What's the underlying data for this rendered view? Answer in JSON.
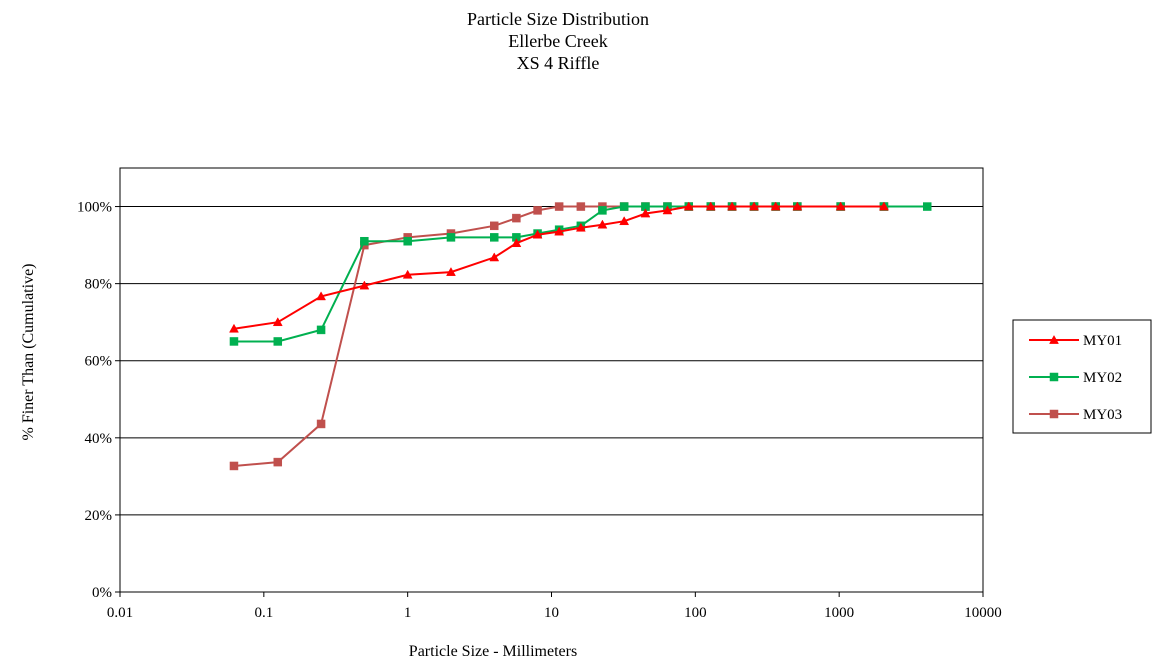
{
  "chart_data": {
    "type": "line",
    "title": [
      "Particle Size Distribution",
      "Ellerbe Creek",
      "XS 4 Riffle"
    ],
    "xlabel": "Particle Size - Millimeters",
    "ylabel": "% Finer Than (Cumulative)",
    "x_scale": "log",
    "xlim": [
      0.01,
      10000
    ],
    "ylim": [
      0,
      1.1
    ],
    "x_ticks": [
      {
        "value": 0.01,
        "label": "0.01"
      },
      {
        "value": 0.1,
        "label": "0.1"
      },
      {
        "value": 1,
        "label": "1"
      },
      {
        "value": 10,
        "label": "10"
      },
      {
        "value": 100,
        "label": "100"
      },
      {
        "value": 1000,
        "label": "1000"
      },
      {
        "value": 10000,
        "label": "10000"
      }
    ],
    "y_ticks": [
      {
        "value": 0,
        "label": "0%"
      },
      {
        "value": 0.2,
        "label": "20%"
      },
      {
        "value": 0.4,
        "label": "40%"
      },
      {
        "value": 0.6,
        "label": "60%"
      },
      {
        "value": 0.8,
        "label": "80%"
      },
      {
        "value": 1.0,
        "label": "100%"
      }
    ],
    "grid": "horizontal",
    "legend_position": "right",
    "series": [
      {
        "name": "MY01",
        "color": "#ff0000",
        "marker": "triangle",
        "points": [
          [
            0.062,
            0.683
          ],
          [
            0.125,
            0.7
          ],
          [
            0.25,
            0.767
          ],
          [
            0.5,
            0.795
          ],
          [
            1,
            0.823
          ],
          [
            2,
            0.83
          ],
          [
            4,
            0.868
          ],
          [
            5.7,
            0.905
          ],
          [
            8,
            0.927
          ],
          [
            11.3,
            0.935
          ],
          [
            16,
            0.945
          ],
          [
            22.6,
            0.953
          ],
          [
            32,
            0.962
          ],
          [
            45,
            0.982
          ],
          [
            64,
            0.99
          ],
          [
            90,
            1.0
          ],
          [
            128,
            1.0
          ],
          [
            180,
            1.0
          ],
          [
            256,
            1.0
          ],
          [
            362,
            1.0
          ],
          [
            512,
            1.0
          ],
          [
            1024,
            1.0
          ],
          [
            2048,
            1.0
          ]
        ]
      },
      {
        "name": "MY02",
        "color": "#00b050",
        "marker": "square",
        "points": [
          [
            0.062,
            0.65
          ],
          [
            0.125,
            0.65
          ],
          [
            0.25,
            0.68
          ],
          [
            0.5,
            0.91
          ],
          [
            1,
            0.91
          ],
          [
            2,
            0.92
          ],
          [
            4,
            0.92
          ],
          [
            5.7,
            0.92
          ],
          [
            8,
            0.93
          ],
          [
            11.3,
            0.94
          ],
          [
            16,
            0.95
          ],
          [
            22.6,
            0.99
          ],
          [
            32,
            1.0
          ],
          [
            45,
            1.0
          ],
          [
            64,
            1.0
          ],
          [
            90,
            1.0
          ],
          [
            128,
            1.0
          ],
          [
            180,
            1.0
          ],
          [
            256,
            1.0
          ],
          [
            362,
            1.0
          ],
          [
            512,
            1.0
          ],
          [
            1024,
            1.0
          ],
          [
            2048,
            1.0
          ],
          [
            4096,
            1.0
          ]
        ]
      },
      {
        "name": "MY03",
        "color": "#c0504d",
        "marker": "square",
        "points": [
          [
            0.062,
            0.327
          ],
          [
            0.125,
            0.337
          ],
          [
            0.25,
            0.436
          ],
          [
            0.5,
            0.9
          ],
          [
            1,
            0.92
          ],
          [
            2,
            0.93
          ],
          [
            4,
            0.95
          ],
          [
            5.7,
            0.97
          ],
          [
            8,
            0.99
          ],
          [
            11.3,
            1.0
          ],
          [
            16,
            1.0
          ],
          [
            22.6,
            1.0
          ],
          [
            32,
            1.0
          ],
          [
            45,
            1.0
          ],
          [
            64,
            1.0
          ],
          [
            90,
            1.0
          ],
          [
            128,
            1.0
          ],
          [
            180,
            1.0
          ],
          [
            256,
            1.0
          ],
          [
            362,
            1.0
          ],
          [
            512,
            1.0
          ],
          [
            1024,
            1.0
          ],
          [
            2048,
            1.0
          ]
        ]
      }
    ]
  }
}
